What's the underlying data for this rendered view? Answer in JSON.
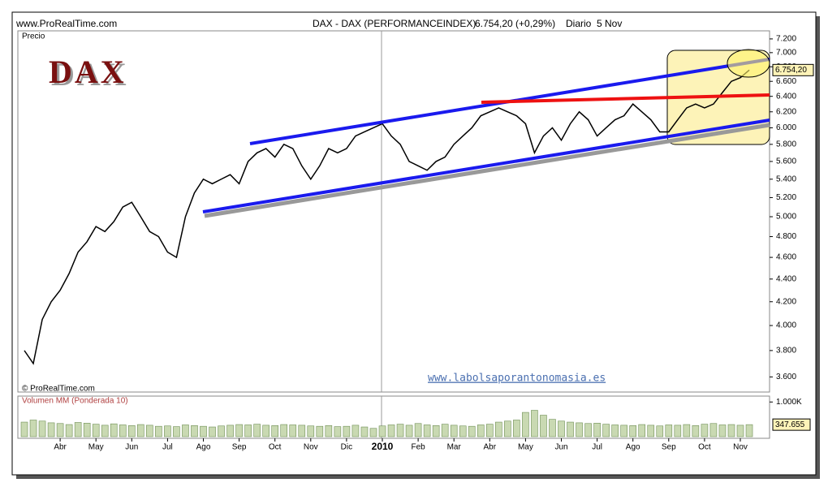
{
  "chart_data": {
    "type": "line",
    "source": "www.ProRealTime.com",
    "title": "DAX - DAX (PERFORMANCEINDEX)",
    "quote": "6.754,20 (+0,29%)",
    "period": "Diario  5 Nov",
    "y_label": "Precio",
    "copyright": "© ProRealTime.com",
    "logo": "DAX",
    "watermark": "www.labolsaporantonomasia.es",
    "categories": [
      null,
      null,
      null,
      null,
      "Abr",
      null,
      null,
      null,
      "May",
      null,
      null,
      null,
      "Jun",
      null,
      null,
      null,
      "Jul",
      null,
      null,
      null,
      "Ago",
      null,
      null,
      null,
      "Sep",
      null,
      null,
      null,
      "Oct",
      null,
      null,
      null,
      "Nov",
      null,
      null,
      null,
      "Dic",
      null,
      null,
      null,
      "2010",
      null,
      null,
      null,
      "Feb",
      null,
      null,
      null,
      "Mar",
      null,
      null,
      null,
      "Abr",
      null,
      null,
      null,
      "May",
      null,
      null,
      null,
      "Jun",
      null,
      null,
      null,
      "Jul",
      null,
      null,
      null,
      "Ago",
      null,
      null,
      null,
      "Sep",
      null,
      null,
      null,
      "Oct",
      null,
      null,
      null,
      "Nov",
      null
    ],
    "series": [
      {
        "color": "#000000",
        "values": [
          3800,
          3700,
          4050,
          4200,
          4300,
          4450,
          4650,
          4750,
          4900,
          4850,
          4950,
          5100,
          5150,
          5000,
          4850,
          4800,
          4650,
          4600,
          5000,
          5250,
          5400,
          5350,
          5400,
          5450,
          5350,
          5600,
          5700,
          5750,
          5650,
          5800,
          5750,
          5550,
          5400,
          5550,
          5750,
          5700,
          5750,
          5900,
          5950,
          6000,
          6050,
          5900,
          5800,
          5600,
          5550,
          5500,
          5600,
          5650,
          5800,
          5900,
          6000,
          6150,
          6200,
          6250,
          6200,
          6150,
          6050,
          5700,
          5900,
          6000,
          5850,
          6050,
          6200,
          6100,
          5900,
          6000,
          6100,
          6150,
          6300,
          6200,
          6100,
          5950,
          5950,
          6100,
          6250,
          6300,
          6250,
          6300,
          6450,
          6600,
          6650,
          6754.2
        ],
        "value_labels": [
          null,
          null,
          null,
          null,
          null,
          null,
          null,
          null,
          null,
          null,
          null,
          null,
          null,
          null,
          null,
          null,
          null,
          null,
          null,
          null,
          null,
          null,
          null,
          null,
          null,
          null,
          null,
          null,
          null,
          null,
          null,
          null,
          null,
          null,
          null,
          null,
          null,
          null,
          null,
          null,
          null,
          null,
          null,
          null,
          null,
          null,
          null,
          null,
          null,
          null,
          null,
          null,
          null,
          null,
          null,
          null,
          null,
          null,
          null,
          null,
          null,
          null,
          null,
          null,
          null,
          null,
          null,
          null,
          null,
          null,
          null,
          null,
          null,
          null,
          null,
          null,
          null,
          null,
          null,
          null,
          null,
          "6.754,20"
        ]
      }
    ],
    "log_scale": true,
    "ylim": [
      3490,
      7320
    ],
    "yticks": [
      {
        "value": 3600,
        "label": "3.600"
      },
      {
        "value": 3800,
        "label": "3.800"
      },
      {
        "value": 4000,
        "label": "4.000"
      },
      {
        "value": 4200,
        "label": "4.200"
      },
      {
        "value": 4400,
        "label": "4.400"
      },
      {
        "value": 4600,
        "label": "4.600"
      },
      {
        "value": 4800,
        "label": "4.800"
      },
      {
        "value": 5000,
        "label": "5.000"
      },
      {
        "value": 5200,
        "label": "5.200"
      },
      {
        "value": 5400,
        "label": "5.400"
      },
      {
        "value": 5600,
        "label": "5.600"
      },
      {
        "value": 5800,
        "label": "5.800"
      },
      {
        "value": 6000,
        "label": "6.000"
      },
      {
        "value": 6200,
        "label": "6.200"
      },
      {
        "value": 6400,
        "label": "6.400"
      },
      {
        "value": 6600,
        "label": "6.600"
      },
      {
        "value": 6800,
        "label": "6.800"
      },
      {
        "value": 7000,
        "label": "7.000"
      },
      {
        "value": 7200,
        "label": "7.200"
      }
    ],
    "volume": {
      "label": "Volumen MM (Ponderada 10)",
      "color": "#c9d9b2",
      "values": [
        420000,
        480000,
        450000,
        400000,
        380000,
        350000,
        410000,
        390000,
        360000,
        330000,
        370000,
        340000,
        320000,
        350000,
        330000,
        300000,
        310000,
        290000,
        340000,
        320000,
        300000,
        280000,
        310000,
        330000,
        350000,
        340000,
        360000,
        330000,
        320000,
        350000,
        340000,
        330000,
        310000,
        300000,
        320000,
        290000,
        300000,
        330000,
        280000,
        240000,
        310000,
        340000,
        360000,
        330000,
        380000,
        340000,
        320000,
        360000,
        330000,
        310000,
        300000,
        340000,
        360000,
        420000,
        450000,
        480000,
        700000,
        760000,
        620000,
        500000,
        450000,
        420000,
        400000,
        380000,
        390000,
        360000,
        340000,
        330000,
        320000,
        350000,
        330000,
        310000,
        340000,
        330000,
        350000,
        320000,
        360000,
        380000,
        340000,
        350000,
        330000,
        347655
      ],
      "value_labels": [
        null,
        null,
        null,
        null,
        null,
        null,
        null,
        null,
        null,
        null,
        null,
        null,
        null,
        null,
        null,
        null,
        null,
        null,
        null,
        null,
        null,
        null,
        null,
        null,
        null,
        null,
        null,
        null,
        null,
        null,
        null,
        null,
        null,
        null,
        null,
        null,
        null,
        null,
        null,
        null,
        null,
        null,
        null,
        null,
        null,
        null,
        null,
        null,
        null,
        null,
        null,
        null,
        null,
        null,
        null,
        null,
        null,
        null,
        null,
        null,
        null,
        null,
        null,
        null,
        null,
        null,
        null,
        null,
        null,
        null,
        null,
        null,
        null,
        null,
        null,
        null,
        null,
        null,
        null,
        null,
        null,
        "347.655"
      ],
      "ylim": [
        0,
        1170000
      ],
      "yticks": [
        {
          "value": 1000000,
          "label": "1.000K"
        }
      ]
    }
  }
}
